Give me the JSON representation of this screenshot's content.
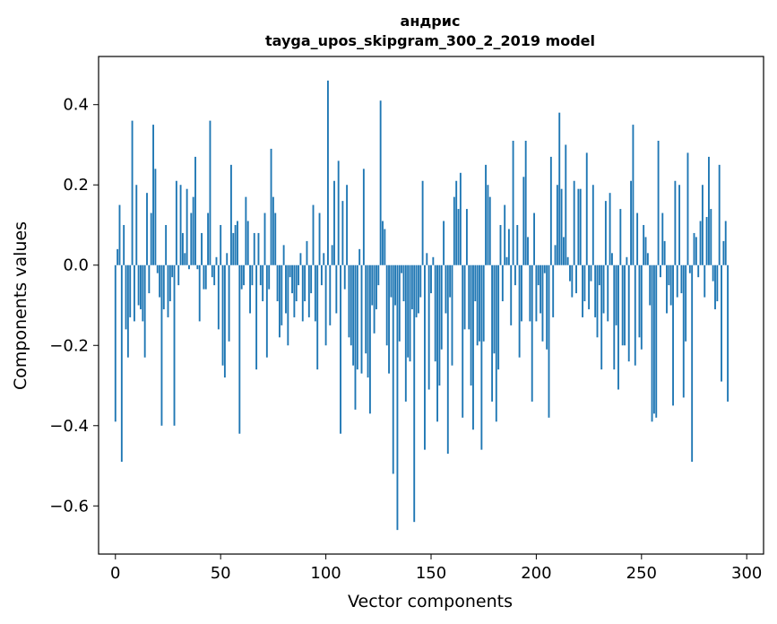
{
  "chart_data": {
    "type": "bar",
    "title": "андрис",
    "subtitle": "tayga_upos_skipgram_300_2_2019 model",
    "xlabel": "Vector components",
    "ylabel": "Components values",
    "xlim": [
      -8,
      308
    ],
    "ylim": [
      -0.72,
      0.52
    ],
    "xticks": [
      0,
      50,
      100,
      150,
      200,
      250,
      300
    ],
    "xtick_labels": [
      "0",
      "50",
      "100",
      "150",
      "200",
      "250",
      "300"
    ],
    "yticks": [
      0.4,
      0.2,
      0.0,
      -0.2,
      -0.4,
      -0.6
    ],
    "ytick_labels": [
      "0.4",
      "0.2",
      "0.0",
      "−0.2",
      "−0.4",
      "−0.6"
    ],
    "bar_color": "#1f77b4",
    "series": [
      {
        "name": "андрис",
        "values": [
          -0.39,
          0.04,
          0.15,
          -0.49,
          0.1,
          -0.16,
          -0.23,
          -0.13,
          0.36,
          -0.14,
          0.2,
          -0.1,
          -0.11,
          -0.14,
          -0.23,
          0.18,
          -0.07,
          0.13,
          0.35,
          0.24,
          -0.02,
          -0.08,
          -0.4,
          -0.11,
          0.1,
          -0.13,
          -0.09,
          -0.03,
          -0.4,
          0.21,
          -0.05,
          0.2,
          0.08,
          0.03,
          0.19,
          -0.01,
          0.13,
          0.17,
          0.27,
          -0.01,
          -0.14,
          0.08,
          -0.06,
          -0.06,
          0.13,
          0.36,
          -0.03,
          -0.05,
          0.02,
          -0.16,
          0.1,
          -0.25,
          -0.28,
          0.03,
          -0.19,
          0.25,
          0.08,
          0.1,
          0.11,
          -0.42,
          -0.06,
          -0.05,
          0.17,
          0.11,
          -0.12,
          -0.05,
          0.08,
          -0.26,
          0.08,
          -0.05,
          -0.09,
          0.13,
          -0.23,
          -0.06,
          0.29,
          0.17,
          0.13,
          -0.09,
          -0.18,
          -0.15,
          0.05,
          -0.12,
          -0.2,
          -0.03,
          -0.07,
          -0.13,
          -0.09,
          -0.05,
          0.03,
          -0.14,
          -0.09,
          0.06,
          -0.13,
          -0.07,
          0.15,
          -0.14,
          -0.26,
          0.13,
          -0.05,
          0.03,
          -0.2,
          0.46,
          -0.15,
          0.05,
          0.21,
          -0.12,
          0.26,
          -0.42,
          0.16,
          -0.06,
          0.2,
          -0.18,
          -0.2,
          -0.25,
          -0.36,
          -0.26,
          0.04,
          -0.27,
          0.24,
          -0.22,
          -0.28,
          -0.37,
          -0.1,
          -0.17,
          -0.11,
          -0.05,
          0.41,
          0.11,
          0.09,
          -0.2,
          -0.27,
          -0.08,
          -0.52,
          -0.1,
          -0.66,
          -0.19,
          -0.02,
          -0.09,
          -0.34,
          -0.23,
          -0.24,
          -0.11,
          -0.64,
          -0.13,
          -0.12,
          -0.08,
          0.21,
          -0.46,
          0.03,
          -0.31,
          -0.07,
          0.02,
          -0.24,
          -0.39,
          -0.3,
          -0.21,
          0.11,
          -0.12,
          -0.47,
          -0.08,
          -0.25,
          0.17,
          0.21,
          0.14,
          0.23,
          -0.38,
          -0.16,
          0.14,
          -0.16,
          -0.3,
          -0.41,
          -0.09,
          -0.2,
          -0.19,
          -0.46,
          -0.19,
          0.25,
          0.2,
          0.17,
          -0.34,
          -0.22,
          -0.39,
          -0.26,
          0.1,
          -0.09,
          0.15,
          0.02,
          0.09,
          -0.15,
          0.31,
          -0.05,
          0.1,
          -0.23,
          -0.14,
          0.22,
          0.31,
          0.07,
          -0.14,
          -0.34,
          0.13,
          -0.14,
          -0.05,
          -0.12,
          -0.19,
          -0.02,
          -0.21,
          -0.38,
          0.27,
          -0.13,
          0.05,
          0.2,
          0.38,
          0.19,
          0.07,
          0.3,
          0.02,
          -0.04,
          -0.08,
          0.21,
          -0.07,
          0.19,
          0.19,
          -0.13,
          -0.09,
          0.28,
          -0.11,
          -0.04,
          0.2,
          -0.13,
          -0.18,
          -0.05,
          -0.26,
          -0.12,
          0.16,
          -0.14,
          0.18,
          0.03,
          -0.26,
          -0.15,
          -0.31,
          0.14,
          -0.2,
          -0.2,
          0.02,
          -0.24,
          0.21,
          0.35,
          -0.25,
          0.13,
          -0.18,
          -0.21,
          0.1,
          0.07,
          0.03,
          -0.1,
          -0.39,
          -0.37,
          -0.38,
          0.31,
          -0.03,
          0.13,
          0.06,
          -0.12,
          -0.05,
          -0.1,
          -0.35,
          0.21,
          -0.08,
          0.2,
          -0.07,
          -0.33,
          -0.19,
          0.28,
          -0.02,
          -0.49,
          0.08,
          0.07,
          -0.03,
          0.11,
          0.2,
          -0.08,
          0.12,
          0.27,
          0.14,
          -0.04,
          -0.11,
          -0.09,
          0.25,
          -0.29,
          0.06,
          0.11,
          -0.34
        ]
      }
    ]
  }
}
